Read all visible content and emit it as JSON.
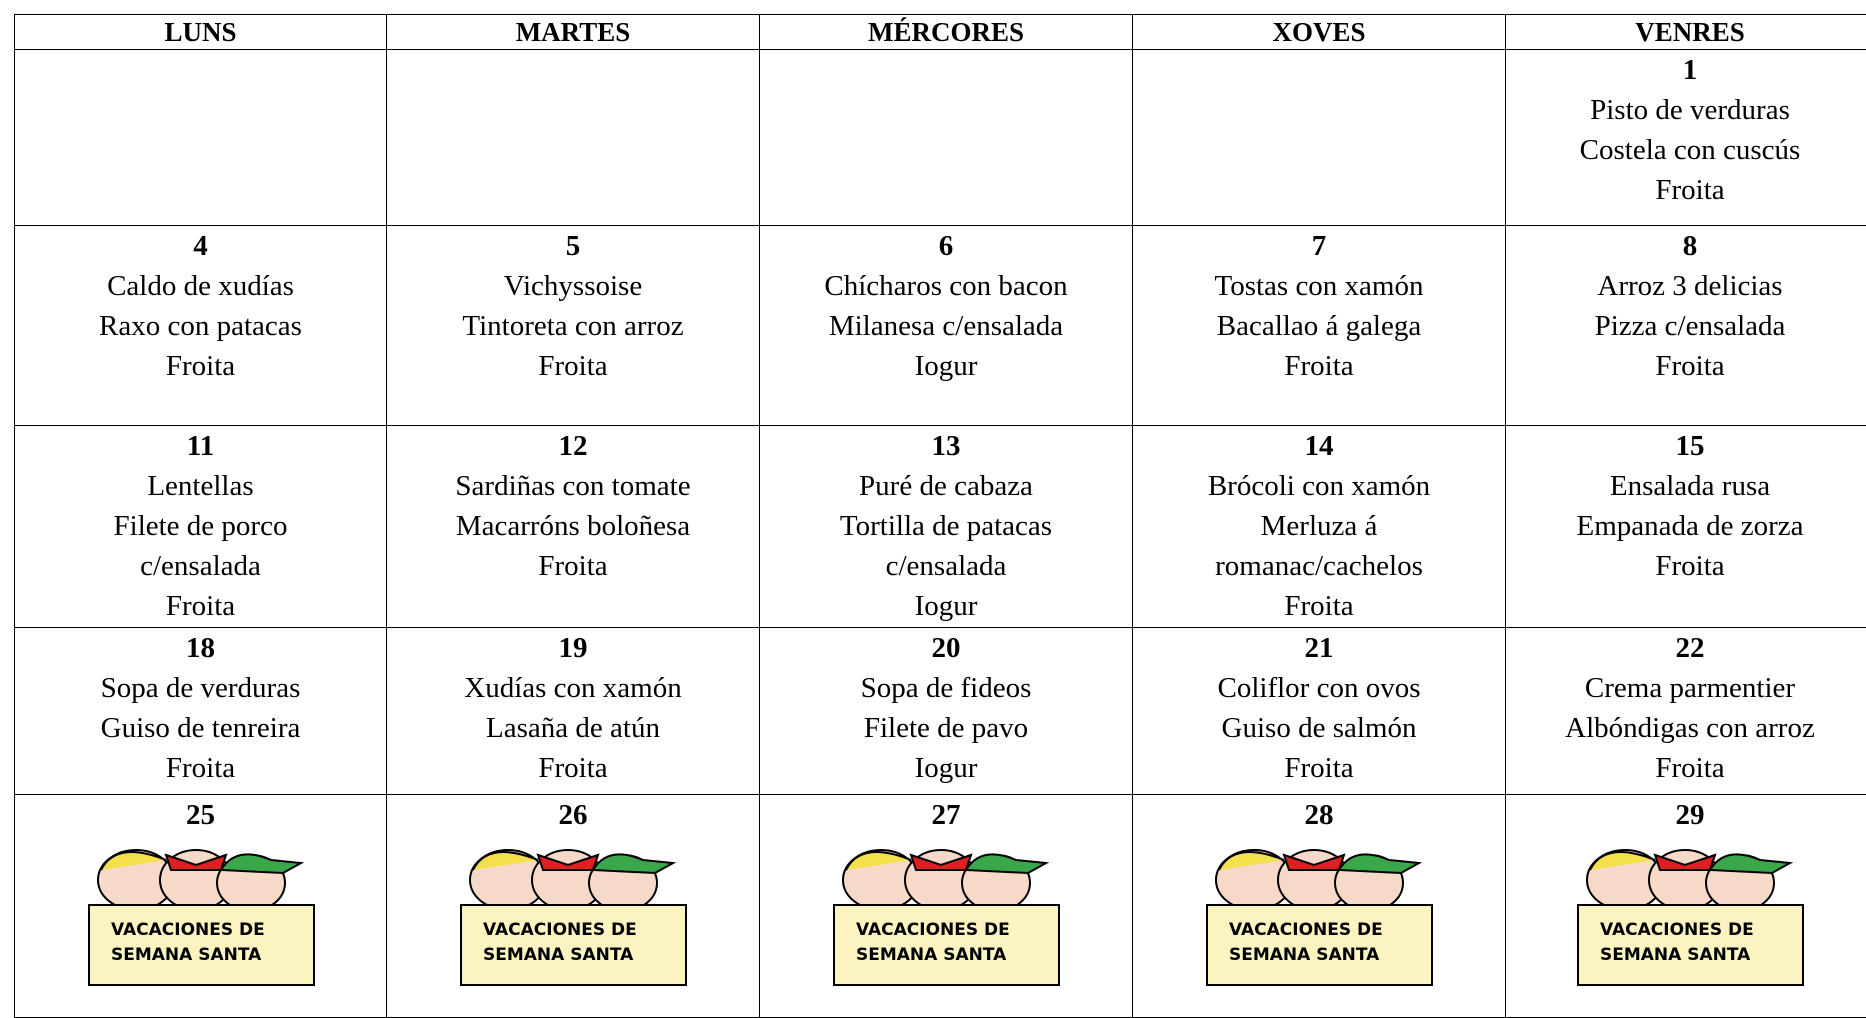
{
  "header": {
    "days": [
      "LUNS",
      "MARTES",
      "MÉRCORES",
      "XOVES",
      "VENRES"
    ]
  },
  "weeks": [
    [
      null,
      null,
      null,
      null,
      {
        "day": "1",
        "lines": [
          "Pisto de verduras",
          "Costela con cuscús",
          "Froita"
        ]
      }
    ],
    [
      {
        "day": "4",
        "lines": [
          "Caldo de xudías",
          "Raxo con patacas",
          "Froita"
        ]
      },
      {
        "day": "5",
        "lines": [
          "Vichyssoise",
          "Tintoreta con arroz",
          "Froita"
        ]
      },
      {
        "day": "6",
        "lines": [
          "Chícharos con bacon",
          "Milanesa c/ensalada",
          "Iogur"
        ]
      },
      {
        "day": "7",
        "lines": [
          "Tostas con xamón",
          "Bacallao á galega",
          "Froita"
        ]
      },
      {
        "day": "8",
        "lines": [
          "Arroz 3 delicias",
          "Pizza c/ensalada",
          "Froita"
        ]
      }
    ],
    [
      {
        "day": "11",
        "lines": [
          "Lentellas",
          "Filete de porco",
          "c/ensalada",
          "Froita"
        ]
      },
      {
        "day": "12",
        "lines": [
          "Sardiñas con tomate",
          "Macarróns boloñesa",
          "Froita"
        ]
      },
      {
        "day": "13",
        "lines": [
          "Puré de cabaza",
          "Tortilla de patacas",
          "c/ensalada",
          "Iogur"
        ]
      },
      {
        "day": "14",
        "lines": [
          "Brócoli con xamón",
          "Merluza á",
          "romanac/cachelos",
          "Froita"
        ]
      },
      {
        "day": "15",
        "lines": [
          "Ensalada rusa",
          "Empanada de zorza",
          "Froita"
        ]
      }
    ],
    [
      {
        "day": "18",
        "lines": [
          "Sopa de verduras",
          "Guiso de tenreira",
          "Froita"
        ]
      },
      {
        "day": "19",
        "lines": [
          "Xudías con xamón",
          "Lasaña de atún",
          "Froita"
        ]
      },
      {
        "day": "20",
        "lines": [
          "Sopa de fideos",
          "Filete de pavo",
          "Iogur"
        ]
      },
      {
        "day": "21",
        "lines": [
          "Coliflor con ovos",
          "Guiso de salmón",
          "Froita"
        ]
      },
      {
        "day": "22",
        "lines": [
          "Crema parmentier",
          "Albóndigas con arroz",
          "Froita"
        ]
      }
    ],
    [
      {
        "day": "25",
        "banner": [
          "VACACIONES DE",
          "SEMANA SANTA"
        ]
      },
      {
        "day": "26",
        "banner": [
          "VACACIONES DE",
          "SEMANA SANTA"
        ]
      },
      {
        "day": "27",
        "banner": [
          "VACACIONES DE",
          "SEMANA SANTA"
        ]
      },
      {
        "day": "28",
        "banner": [
          "VACACIONES DE",
          "SEMANA SANTA"
        ]
      },
      {
        "day": "29",
        "banner": [
          "VACACIONES DE",
          "SEMANA SANTA"
        ]
      }
    ]
  ]
}
